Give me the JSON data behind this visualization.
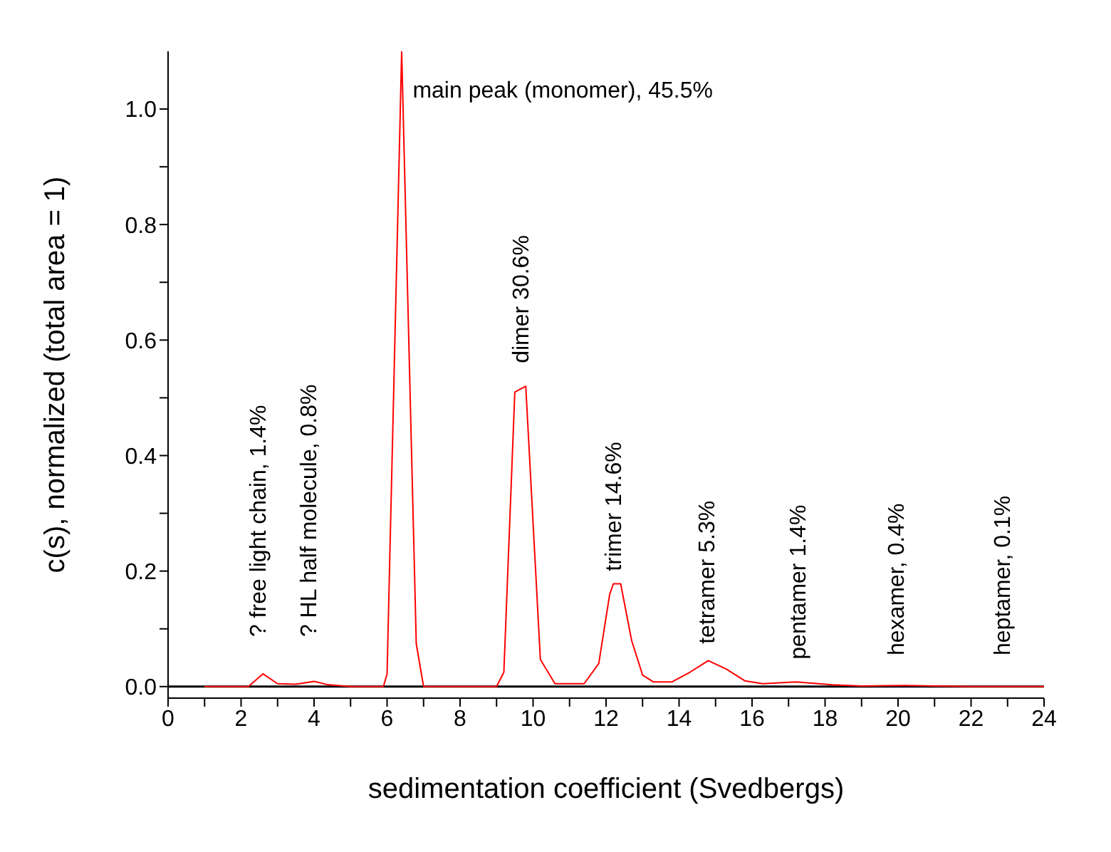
{
  "chart_data": {
    "type": "line",
    "xlabel": "sedimentation coefficient (Svedbergs)",
    "ylabel": "c(s), normalized (total area = 1)",
    "xlim": [
      0,
      24
    ],
    "ylim": [
      -0.02,
      1.1
    ],
    "xticks": [
      0,
      {
        "value": 1,
        "label": null
      },
      2,
      {
        "value": 3,
        "label": null
      },
      4,
      {
        "value": 5,
        "label": null
      },
      6,
      {
        "value": 7,
        "label": null
      },
      8,
      {
        "value": 9,
        "label": null
      },
      10,
      {
        "value": 11,
        "label": null
      },
      12,
      {
        "value": 13,
        "label": null
      },
      14,
      {
        "value": 15,
        "label": null
      },
      16,
      {
        "value": 17,
        "label": null
      },
      18,
      {
        "value": 19,
        "label": null
      },
      20,
      {
        "value": 21,
        "label": null
      },
      22,
      {
        "value": 23,
        "label": null
      },
      24
    ],
    "yticks": [
      {
        "value": 0,
        "label": "0.0"
      },
      {
        "value": 0.1,
        "label": null
      },
      {
        "value": 0.2,
        "label": "0.2"
      },
      {
        "value": 0.3,
        "label": null
      },
      {
        "value": 0.4,
        "label": "0.4"
      },
      {
        "value": 0.5,
        "label": null
      },
      {
        "value": 0.6,
        "label": "0.6"
      },
      {
        "value": 0.7,
        "label": null
      },
      {
        "value": 0.8,
        "label": "0.8"
      },
      {
        "value": 0.9,
        "label": null
      },
      {
        "value": 1.0,
        "label": "1.0"
      }
    ],
    "grid": false,
    "legend": false,
    "marker": "none",
    "line_style": "solid",
    "ref_lines": [
      {
        "axis": "y",
        "value": 0,
        "color": "#000000"
      }
    ],
    "series": [
      {
        "color": "#ff0000",
        "x": [
          1.0,
          2.2,
          2.6,
          3.0,
          3.5,
          4.0,
          4.4,
          5.0,
          5.9,
          6.0,
          6.4,
          6.8,
          7.0,
          9.0,
          9.2,
          9.5,
          9.8,
          10.2,
          10.6,
          11.4,
          11.8,
          12.1,
          12.2,
          12.4,
          12.7,
          13.0,
          13.3,
          13.8,
          14.3,
          14.8,
          15.3,
          15.8,
          16.3,
          17.2,
          18.2,
          19.0,
          20.2,
          21.0,
          22.0,
          24.0
        ],
        "values": [
          0,
          0,
          0.022,
          0.005,
          0.004,
          0.009,
          0.003,
          0,
          0,
          0.022,
          1.1,
          0.074,
          0,
          0,
          0.025,
          0.51,
          0.52,
          0.047,
          0.005,
          0.005,
          0.04,
          0.16,
          0.178,
          0.178,
          0.08,
          0.02,
          0.008,
          0.008,
          0.025,
          0.045,
          0.03,
          0.01,
          0.005,
          0.008,
          0.003,
          0.001,
          0.002,
          0.001,
          0,
          0
        ]
      }
    ],
    "annotations": [
      "main peak (monomer), 45.5%",
      "? free light chain, 1.4%",
      "? HL half molecule, 0.8%",
      "dimer 30.6%",
      "trimer 14.6%",
      "tetramer 5.3%",
      "pentamer 1.4%",
      "hexamer, 0.4%",
      "heptamer, 0.1%"
    ]
  }
}
